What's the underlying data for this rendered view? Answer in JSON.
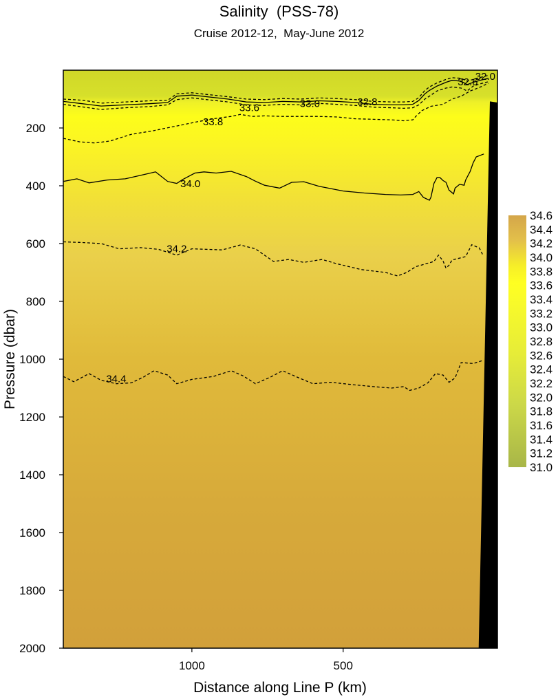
{
  "chart_data": {
    "type": "heatmap",
    "title": "Salinity  (PSS-78)",
    "subtitle": "Cruise 2012-12,  May-June 2012",
    "xlabel": "Distance along Line P  (km)",
    "ylabel": "Pressure  (dbar)",
    "x_ticks": [
      1000,
      500
    ],
    "x_tick_labels": [
      "1000",
      "500"
    ],
    "xlim": [
      1425,
      -10
    ],
    "ylim": [
      2000,
      0
    ],
    "y_ticks": [
      200,
      400,
      600,
      800,
      1000,
      1200,
      1400,
      1600,
      1800,
      2000
    ],
    "y_tick_labels": [
      "200",
      "400",
      "600",
      "800",
      "1000",
      "1200",
      "1400",
      "1600",
      "1800",
      "2000"
    ],
    "colorbar": {
      "min": 31.0,
      "max": 34.6,
      "labels": [
        "34.6",
        "34.4",
        "34.2",
        "34.0",
        "33.8",
        "33.6",
        "33.4",
        "33.2",
        "33.0",
        "32.8",
        "32.6",
        "32.4",
        "32.2",
        "32.0",
        "31.8",
        "31.6",
        "31.4",
        "31.2",
        "31.0"
      ],
      "colors": [
        "#d4a64a",
        "#ffff22",
        "#a8b648"
      ]
    },
    "contour_labels": [
      {
        "text": "32.6",
        "x": 88,
        "y": 40
      },
      {
        "text": "32.0",
        "x": 30,
        "y": 22
      },
      {
        "text": "32.8",
        "x": 420,
        "y": 110
      },
      {
        "text": "33.0",
        "x": 610,
        "y": 115
      },
      {
        "text": "33.6",
        "x": 810,
        "y": 130
      },
      {
        "text": "33.8",
        "x": 930,
        "y": 178
      },
      {
        "text": "34.0",
        "x": 1005,
        "y": 393
      },
      {
        "text": "34.2",
        "x": 1050,
        "y": 618
      },
      {
        "text": "34.4",
        "x": 1250,
        "y": 1068
      }
    ],
    "contours": [
      {
        "value": 34.4,
        "style": "dashed",
        "points": [
          [
            1425,
            1060
          ],
          [
            1390,
            1078
          ],
          [
            1340,
            1050
          ],
          [
            1300,
            1073
          ],
          [
            1250,
            1085
          ],
          [
            1200,
            1082
          ],
          [
            1160,
            1062
          ],
          [
            1125,
            1040
          ],
          [
            1080,
            1055
          ],
          [
            1050,
            1085
          ],
          [
            1000,
            1070
          ],
          [
            930,
            1060
          ],
          [
            870,
            1040
          ],
          [
            830,
            1058
          ],
          [
            790,
            1085
          ],
          [
            740,
            1062
          ],
          [
            700,
            1040
          ],
          [
            650,
            1063
          ],
          [
            600,
            1085
          ],
          [
            540,
            1080
          ],
          [
            470,
            1088
          ],
          [
            400,
            1095
          ],
          [
            340,
            1100
          ],
          [
            300,
            1095
          ],
          [
            280,
            1108
          ],
          [
            250,
            1100
          ],
          [
            220,
            1082
          ],
          [
            195,
            1050
          ],
          [
            170,
            1055
          ],
          [
            150,
            1080
          ],
          [
            130,
            1065
          ],
          [
            110,
            1012
          ],
          [
            70,
            1015
          ],
          [
            40,
            1005
          ]
        ]
      },
      {
        "value": 34.2,
        "style": "dashed",
        "points": [
          [
            1425,
            594
          ],
          [
            1370,
            596
          ],
          [
            1300,
            600
          ],
          [
            1240,
            618
          ],
          [
            1170,
            614
          ],
          [
            1110,
            620
          ],
          [
            1050,
            640
          ],
          [
            1000,
            618
          ],
          [
            900,
            622
          ],
          [
            840,
            605
          ],
          [
            790,
            618
          ],
          [
            760,
            640
          ],
          [
            730,
            662
          ],
          [
            680,
            655
          ],
          [
            630,
            665
          ],
          [
            570,
            655
          ],
          [
            520,
            670
          ],
          [
            440,
            690
          ],
          [
            360,
            700
          ],
          [
            320,
            712
          ],
          [
            290,
            700
          ],
          [
            260,
            680
          ],
          [
            200,
            662
          ],
          [
            185,
            640
          ],
          [
            170,
            660
          ],
          [
            160,
            685
          ],
          [
            150,
            675
          ],
          [
            140,
            657
          ],
          [
            95,
            645
          ],
          [
            75,
            604
          ],
          [
            50,
            615
          ],
          [
            38,
            640
          ]
        ]
      },
      {
        "value": 34.0,
        "style": "solid",
        "points": [
          [
            1425,
            385
          ],
          [
            1380,
            376
          ],
          [
            1340,
            390
          ],
          [
            1280,
            380
          ],
          [
            1220,
            376
          ],
          [
            1170,
            364
          ],
          [
            1120,
            352
          ],
          [
            1080,
            385
          ],
          [
            1050,
            392
          ],
          [
            1030,
            378
          ],
          [
            990,
            356
          ],
          [
            960,
            352
          ],
          [
            920,
            356
          ],
          [
            870,
            350
          ],
          [
            820,
            368
          ],
          [
            790,
            384
          ],
          [
            760,
            398
          ],
          [
            710,
            408
          ],
          [
            670,
            388
          ],
          [
            630,
            386
          ],
          [
            580,
            402
          ],
          [
            500,
            418
          ],
          [
            430,
            425
          ],
          [
            360,
            430
          ],
          [
            310,
            432
          ],
          [
            270,
            430
          ],
          [
            250,
            420
          ],
          [
            235,
            440
          ],
          [
            215,
            450
          ],
          [
            210,
            440
          ],
          [
            200,
            392
          ],
          [
            190,
            372
          ],
          [
            180,
            372
          ],
          [
            170,
            382
          ],
          [
            160,
            388
          ],
          [
            150,
            415
          ],
          [
            135,
            428
          ],
          [
            130,
            408
          ],
          [
            115,
            395
          ],
          [
            100,
            398
          ],
          [
            95,
            380
          ],
          [
            80,
            350
          ],
          [
            70,
            320
          ],
          [
            60,
            300
          ],
          [
            35,
            290
          ]
        ]
      },
      {
        "value": 33.8,
        "style": "dashed",
        "points": [
          [
            1425,
            236
          ],
          [
            1370,
            248
          ],
          [
            1320,
            252
          ],
          [
            1270,
            245
          ],
          [
            1200,
            222
          ],
          [
            1130,
            210
          ],
          [
            1050,
            193
          ],
          [
            980,
            178
          ],
          [
            930,
            168
          ],
          [
            870,
            160
          ],
          [
            840,
            153
          ],
          [
            800,
            160
          ],
          [
            760,
            158
          ],
          [
            700,
            160
          ],
          [
            640,
            160
          ],
          [
            580,
            160
          ],
          [
            520,
            162
          ],
          [
            460,
            168
          ],
          [
            400,
            170
          ],
          [
            340,
            172
          ],
          [
            300,
            175
          ],
          [
            270,
            172
          ],
          [
            260,
            160
          ],
          [
            240,
            140
          ],
          [
            210,
            125
          ],
          [
            170,
            118
          ],
          [
            140,
            100
          ],
          [
            110,
            90
          ],
          [
            80,
            72
          ],
          [
            50,
            60
          ],
          [
            20,
            45
          ]
        ]
      },
      {
        "value": 33.6,
        "style": "dashed",
        "points": [
          [
            1425,
            118
          ],
          [
            1370,
            126
          ],
          [
            1300,
            136
          ],
          [
            1220,
            130
          ],
          [
            1140,
            126
          ],
          [
            1080,
            120
          ],
          [
            1050,
            102
          ],
          [
            1000,
            96
          ],
          [
            950,
            102
          ],
          [
            880,
            110
          ],
          [
            820,
            120
          ],
          [
            760,
            122
          ],
          [
            700,
            118
          ],
          [
            640,
            120
          ],
          [
            580,
            115
          ],
          [
            520,
            118
          ],
          [
            460,
            122
          ],
          [
            400,
            128
          ],
          [
            340,
            130
          ],
          [
            300,
            132
          ],
          [
            270,
            130
          ],
          [
            250,
            120
          ],
          [
            230,
            100
          ],
          [
            215,
            90
          ],
          [
            190,
            72
          ],
          [
            160,
            62
          ],
          [
            140,
            58
          ],
          [
            110,
            62
          ],
          [
            90,
            72
          ],
          [
            70,
            55
          ],
          [
            50,
            48
          ],
          [
            20,
            40
          ]
        ]
      },
      {
        "value": 33.0,
        "style": "solid",
        "points": [
          [
            1425,
            108
          ],
          [
            1370,
            115
          ],
          [
            1300,
            124
          ],
          [
            1220,
            120
          ],
          [
            1140,
            116
          ],
          [
            1080,
            112
          ],
          [
            1050,
            90
          ],
          [
            1000,
            86
          ],
          [
            950,
            92
          ],
          [
            880,
            100
          ],
          [
            820,
            110
          ],
          [
            760,
            112
          ],
          [
            700,
            108
          ],
          [
            640,
            110
          ],
          [
            580,
            106
          ],
          [
            520,
            108
          ],
          [
            460,
            112
          ],
          [
            400,
            118
          ],
          [
            340,
            120
          ],
          [
            300,
            120
          ],
          [
            270,
            118
          ],
          [
            250,
            105
          ],
          [
            230,
            82
          ],
          [
            215,
            70
          ],
          [
            190,
            55
          ],
          [
            160,
            42
          ],
          [
            140,
            35
          ],
          [
            110,
            38
          ],
          [
            90,
            50
          ],
          [
            70,
            42
          ],
          [
            50,
            36
          ],
          [
            20,
            28
          ]
        ]
      },
      {
        "value": 32.8,
        "style": "dashed",
        "points": [
          [
            1425,
            100
          ],
          [
            1360,
            104
          ],
          [
            1300,
            114
          ],
          [
            1220,
            110
          ],
          [
            1140,
            106
          ],
          [
            1080,
            104
          ],
          [
            1050,
            82
          ],
          [
            1000,
            78
          ],
          [
            950,
            84
          ],
          [
            880,
            92
          ],
          [
            820,
            100
          ],
          [
            760,
            102
          ],
          [
            700,
            98
          ],
          [
            640,
            100
          ],
          [
            580,
            96
          ],
          [
            520,
            98
          ],
          [
            460,
            102
          ],
          [
            400,
            108
          ],
          [
            340,
            110
          ],
          [
            300,
            110
          ],
          [
            270,
            108
          ],
          [
            250,
            95
          ],
          [
            230,
            70
          ],
          [
            215,
            58
          ],
          [
            190,
            44
          ],
          [
            160,
            32
          ],
          [
            140,
            26
          ],
          [
            110,
            28
          ],
          [
            90,
            38
          ],
          [
            70,
            32
          ],
          [
            50,
            26
          ],
          [
            20,
            18
          ]
        ]
      }
    ],
    "bottom_topography": {
      "fill": "#000000",
      "points": [
        [
          -10,
          2000
        ],
        [
          -10,
          112
        ],
        [
          15,
          108
        ],
        [
          52,
          2000
        ]
      ]
    },
    "grid": false
  }
}
